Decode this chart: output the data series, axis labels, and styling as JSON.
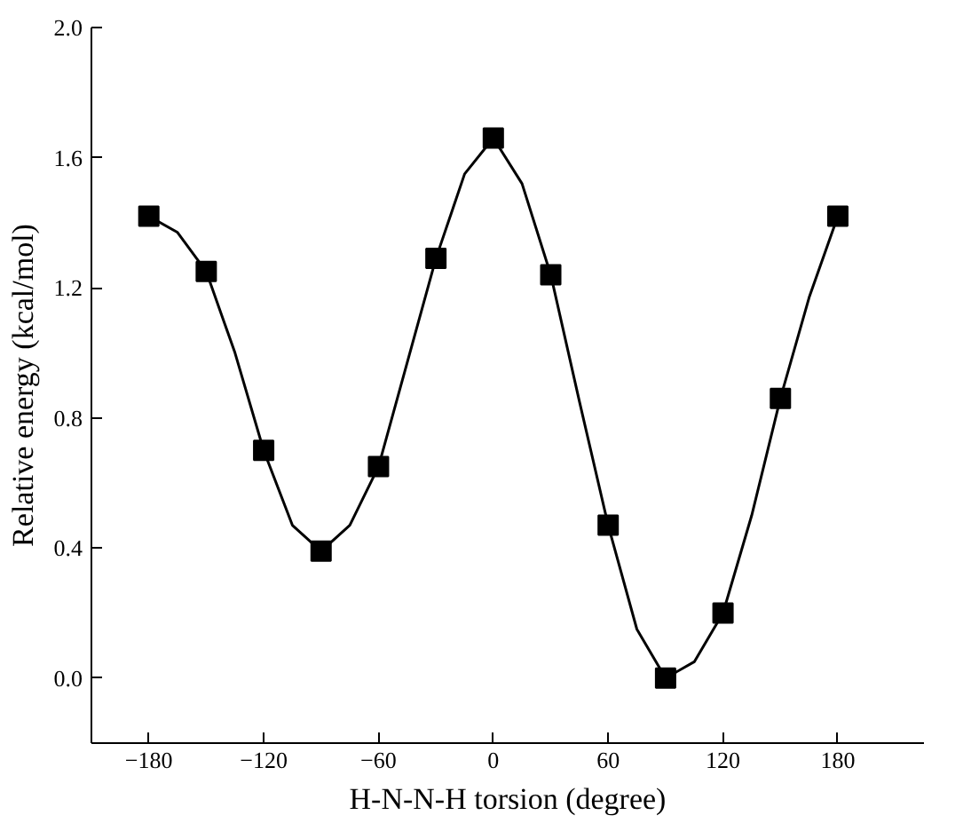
{
  "chart_data": {
    "type": "scatter",
    "xlabel": "H-N-N-H torsion (degree)",
    "ylabel": "Relative energy (kcal/mol)",
    "xlim": [
      -210,
      225
    ],
    "ylim": [
      -0.2,
      2.0
    ],
    "xticks": [
      -180,
      -120,
      -60,
      0,
      60,
      120,
      180
    ],
    "yticks": [
      {
        "value": 0,
        "label": "0.0"
      },
      {
        "value": 0.4,
        "label": "0.4"
      },
      {
        "value": 0.8,
        "label": "0.8"
      },
      {
        "value": 1.2,
        "label": "1.2"
      },
      {
        "value": 1.6,
        "label": "1.6"
      },
      {
        "value": 2,
        "label": "2.0"
      }
    ],
    "series": [
      {
        "type": "line",
        "color": "#000000",
        "marker": "none",
        "line_style": "solid",
        "x": [
          -180,
          -165,
          -150,
          -135,
          -120,
          -105,
          -90,
          -75,
          -60,
          -45,
          -30,
          -15,
          0,
          15,
          30,
          45,
          60,
          75,
          90,
          105,
          120,
          135,
          150,
          165,
          180
        ],
        "values": [
          1.42,
          1.37,
          1.25,
          1.0,
          0.7,
          0.47,
          0.39,
          0.47,
          0.65,
          0.97,
          1.29,
          1.55,
          1.66,
          1.52,
          1.24,
          0.85,
          0.47,
          0.15,
          0.0,
          0.05,
          0.2,
          0.5,
          0.86,
          1.17,
          1.42
        ]
      },
      {
        "color": "#000000",
        "marker": "square",
        "x": [
          -180,
          -150,
          -120,
          -90,
          -60,
          -30,
          0,
          30,
          60,
          90,
          120,
          150,
          180
        ],
        "values": [
          1.42,
          1.25,
          0.7,
          0.39,
          0.65,
          1.29,
          1.66,
          1.24,
          0.47,
          0.0,
          0.2,
          0.86,
          1.42
        ]
      }
    ]
  }
}
